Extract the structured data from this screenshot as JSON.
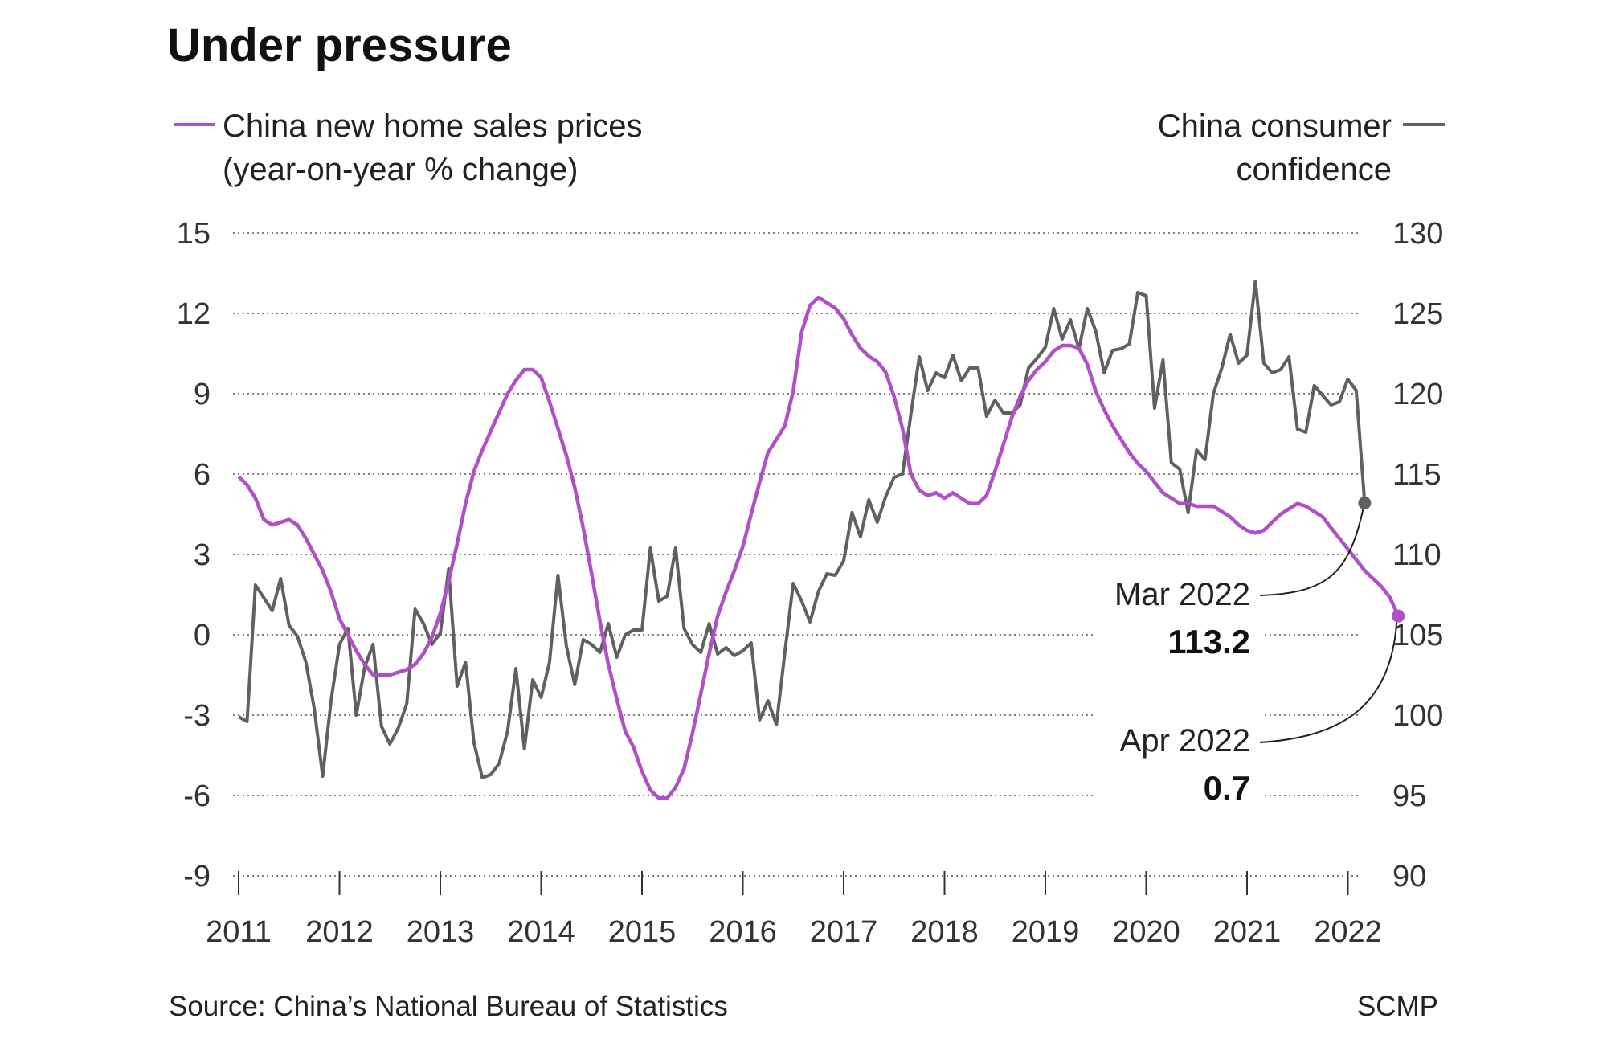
{
  "title": "Under pressure",
  "legend": {
    "left_line1": "China new home sales prices",
    "left_line2": "(year-on-year % change)",
    "right_line1": "China consumer",
    "right_line2": "confidence"
  },
  "colors": {
    "prices": "#b04fc6",
    "confidence": "#606060",
    "grid": "#555555",
    "text": "#222222"
  },
  "annotations": {
    "mar_label": "Mar 2022",
    "mar_value": "113.2",
    "apr_label": "Apr 2022",
    "apr_value": "0.7"
  },
  "source": "Source: China’s National Bureau of Statistics",
  "credit": "SCMP",
  "chart_data": {
    "type": "line",
    "x_start": 2011,
    "x_step": 0.08333,
    "x_ticks": [
      "2011",
      "2012",
      "2013",
      "2014",
      "2015",
      "2016",
      "2017",
      "2018",
      "2019",
      "2020",
      "2021",
      "2022"
    ],
    "y_left": {
      "range": [
        -9,
        15
      ],
      "ticks": [
        "15",
        "12",
        "9",
        "6",
        "3",
        "0",
        "-3",
        "-6",
        "-9"
      ],
      "tick_values": [
        15,
        12,
        9,
        6,
        3,
        0,
        -3,
        -6,
        -9
      ]
    },
    "y_right": {
      "range": [
        90,
        130
      ],
      "ticks": [
        "130",
        "125",
        "120",
        "115",
        "110",
        "105",
        "100",
        "95",
        "90"
      ],
      "tick_values": [
        130,
        125,
        120,
        115,
        110,
        105,
        100,
        95,
        90
      ]
    },
    "grid": "horizontal-dotted",
    "legend_placement": "top",
    "series": [
      {
        "name": "China new home sales prices (year-on-year % change)",
        "axis": "left",
        "values": [
          5.9,
          5.6,
          5.1,
          4.3,
          4.1,
          4.2,
          4.3,
          4.1,
          3.6,
          3.0,
          2.4,
          1.6,
          0.6,
          0.0,
          -0.6,
          -1.1,
          -1.5,
          -1.5,
          -1.5,
          -1.4,
          -1.3,
          -1.1,
          -0.7,
          -0.1,
          0.8,
          2.0,
          3.4,
          4.9,
          6.1,
          6.9,
          7.6,
          8.3,
          9.0,
          9.5,
          9.9,
          9.9,
          9.6,
          8.7,
          7.7,
          6.7,
          5.5,
          4.0,
          2.3,
          0.5,
          -1.1,
          -2.4,
          -3.6,
          -4.2,
          -5.1,
          -5.8,
          -6.1,
          -6.1,
          -5.7,
          -5.0,
          -3.7,
          -2.2,
          -0.7,
          0.7,
          1.6,
          2.4,
          3.3,
          4.5,
          5.7,
          6.8,
          7.3,
          7.8,
          9.1,
          11.3,
          12.3,
          12.6,
          12.4,
          12.2,
          11.8,
          11.2,
          10.7,
          10.4,
          10.2,
          9.8,
          8.9,
          7.7,
          6.0,
          5.4,
          5.2,
          5.3,
          5.1,
          5.3,
          5.1,
          4.9,
          4.9,
          5.2,
          6.1,
          7.1,
          8.1,
          8.9,
          9.5,
          9.9,
          10.2,
          10.6,
          10.8,
          10.8,
          10.7,
          10.1,
          9.1,
          8.4,
          7.8,
          7.3,
          6.8,
          6.4,
          6.1,
          5.7,
          5.3,
          5.1,
          4.9,
          4.9,
          4.8,
          4.8,
          4.8,
          4.6,
          4.4,
          4.1,
          3.9,
          3.8,
          3.9,
          4.2,
          4.5,
          4.7,
          4.9,
          4.8,
          4.6,
          4.4,
          4.0,
          3.6,
          3.2,
          2.8,
          2.4,
          2.1,
          1.8,
          1.4,
          0.7
        ]
      },
      {
        "name": "China consumer confidence",
        "axis": "right",
        "values": [
          99.9,
          99.6,
          108.1,
          107.3,
          106.5,
          108.5,
          105.6,
          104.9,
          103.3,
          100.4,
          96.2,
          100.9,
          104.4,
          105.4,
          100.0,
          103.0,
          104.4,
          99.3,
          98.2,
          99.2,
          100.7,
          106.6,
          105.7,
          104.4,
          105.1,
          109.1,
          101.8,
          103.3,
          98.3,
          96.1,
          96.3,
          97.0,
          99.0,
          102.9,
          97.9,
          102.2,
          101.1,
          103.3,
          108.7,
          104.3,
          101.9,
          104.7,
          104.4,
          103.9,
          105.7,
          103.6,
          105.0,
          105.3,
          105.3,
          110.4,
          107.1,
          107.4,
          110.4,
          105.4,
          104.4,
          103.9,
          105.7,
          103.8,
          104.2,
          103.7,
          104.0,
          104.5,
          99.7,
          100.9,
          99.4,
          103.9,
          108.2,
          107.1,
          105.8,
          107.7,
          108.8,
          108.7,
          109.6,
          112.6,
          111.1,
          113.4,
          112.0,
          113.6,
          114.8,
          115.0,
          118.7,
          122.3,
          120.2,
          121.3,
          121.0,
          122.4,
          120.8,
          121.6,
          121.6,
          118.6,
          119.6,
          118.8,
          118.8,
          119.3,
          121.6,
          122.2,
          122.9,
          125.3,
          123.4,
          124.6,
          122.8,
          125.3,
          123.9,
          121.3,
          122.7,
          122.8,
          123.1,
          126.3,
          126.1,
          119.1,
          122.1,
          115.7,
          115.3,
          112.6,
          116.5,
          115.9,
          120.0,
          121.6,
          123.7,
          121.9,
          122.4,
          127.0,
          121.9,
          121.3,
          121.5,
          122.3,
          117.8,
          117.6,
          120.5,
          119.9,
          119.3,
          119.5,
          120.9,
          120.2,
          113.2
        ]
      }
    ]
  }
}
